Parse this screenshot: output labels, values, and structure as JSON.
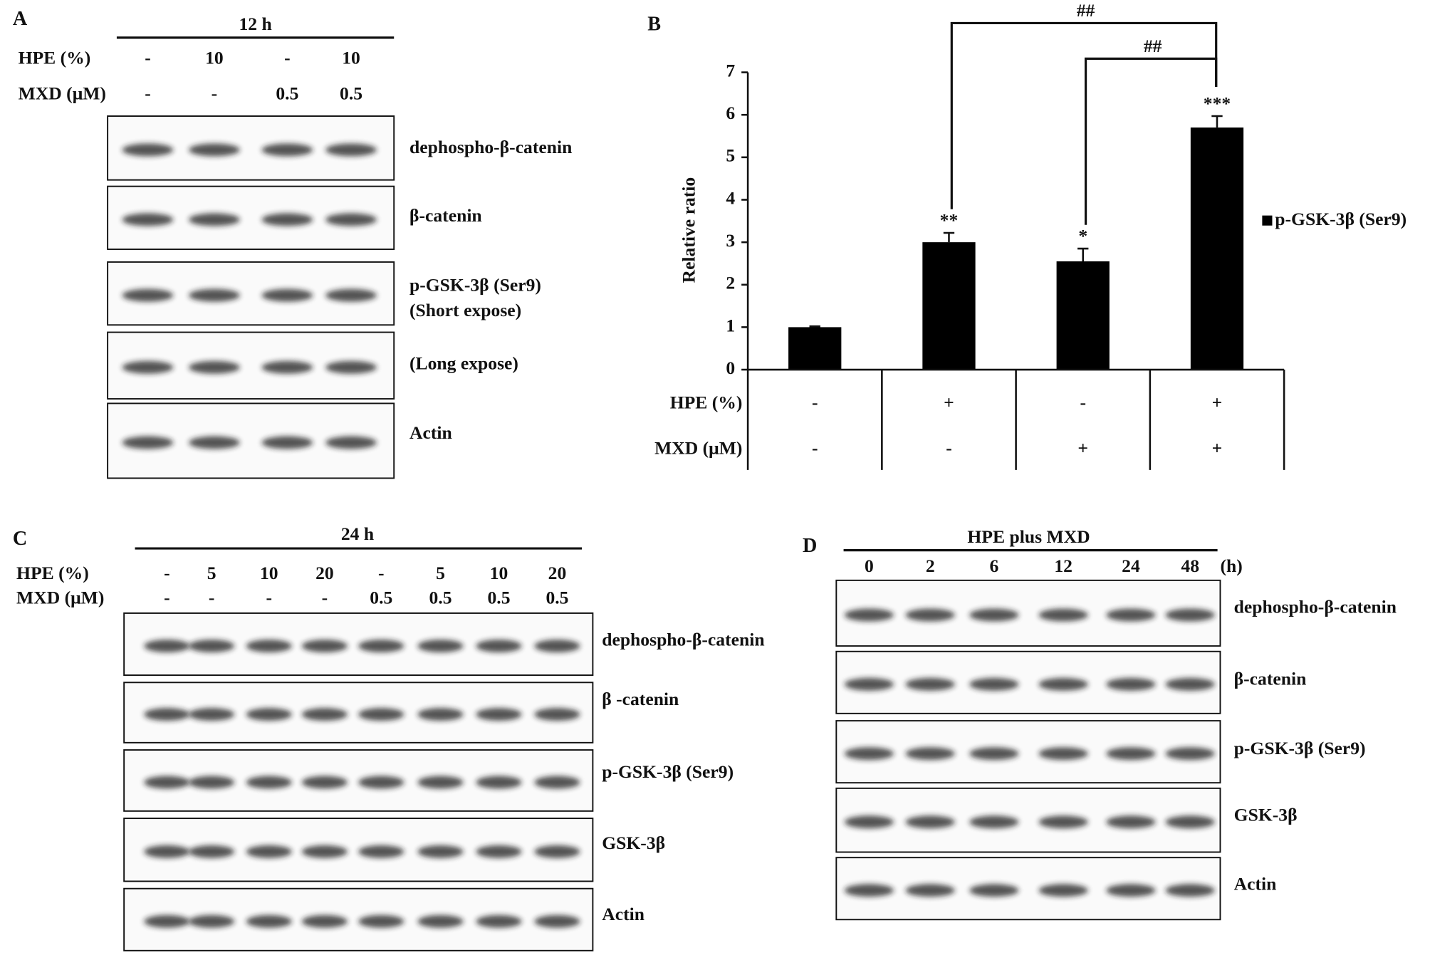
{
  "panel_a": {
    "letter": "A",
    "time": "12 h",
    "row_labels": [
      "HPE (%)",
      "MXD (μM)"
    ],
    "hpe": [
      "-",
      "10",
      "-",
      "10"
    ],
    "mxd": [
      "-",
      "-",
      "0.5",
      "0.5"
    ],
    "blots": [
      [
        "dephospho-β-catenin"
      ],
      [
        "β-catenin"
      ],
      [
        "p-GSK-3β (Ser9)",
        "(Short expose)"
      ],
      [
        "(Long expose)"
      ],
      [
        "Actin"
      ]
    ]
  },
  "chart_data": {
    "type": "bar",
    "letter": "B",
    "y_label": "Relative ratio",
    "categories": [
      null,
      null,
      null,
      null
    ],
    "series": [
      {
        "name": "p-GSK-3β (Ser9)",
        "color": "#000000",
        "values": [
          1,
          3.0,
          2.55,
          5.7
        ],
        "errors": [
          0.02,
          0.22,
          0.3,
          0.27
        ],
        "value_labels": [
          null,
          "**",
          "*",
          "***"
        ]
      }
    ],
    "ylim": [
      0,
      7
    ],
    "yticks": [
      0,
      1,
      2,
      3,
      4,
      5,
      6,
      7
    ],
    "condition_rows": [
      {
        "label": "HPE (%)",
        "values": [
          "-",
          "+",
          "-",
          "+"
        ]
      },
      {
        "label": "MXD (μM)",
        "values": [
          "-",
          "-",
          "+",
          "+"
        ]
      }
    ],
    "annotations": [
      "##",
      "##"
    ],
    "legend": "right"
  },
  "panel_c": {
    "letter": "C",
    "time": "24 h",
    "row_labels": [
      "HPE (%)",
      "MXD (μM)"
    ],
    "hpe": [
      "-",
      "5",
      "10",
      "20",
      "-",
      "5",
      "10",
      "20"
    ],
    "mxd": [
      "-",
      "-",
      "-",
      "-",
      "0.5",
      "0.5",
      "0.5",
      "0.5"
    ],
    "blots": [
      [
        "dephospho-β-catenin"
      ],
      [
        "β -catenin"
      ],
      [
        "p-GSK-3β (Ser9)"
      ],
      [
        "GSK-3β"
      ],
      [
        "Actin"
      ]
    ]
  },
  "panel_d": {
    "letter": "D",
    "title": "HPE plus MXD",
    "times": [
      "0",
      "2",
      "6",
      "12",
      "24",
      "48"
    ],
    "unit": "(h)",
    "blots": [
      [
        "dephospho-β-catenin"
      ],
      [
        "β-catenin"
      ],
      [
        "p-GSK-3β (Ser9)"
      ],
      [
        "GSK-3β"
      ],
      [
        "Actin"
      ]
    ]
  }
}
